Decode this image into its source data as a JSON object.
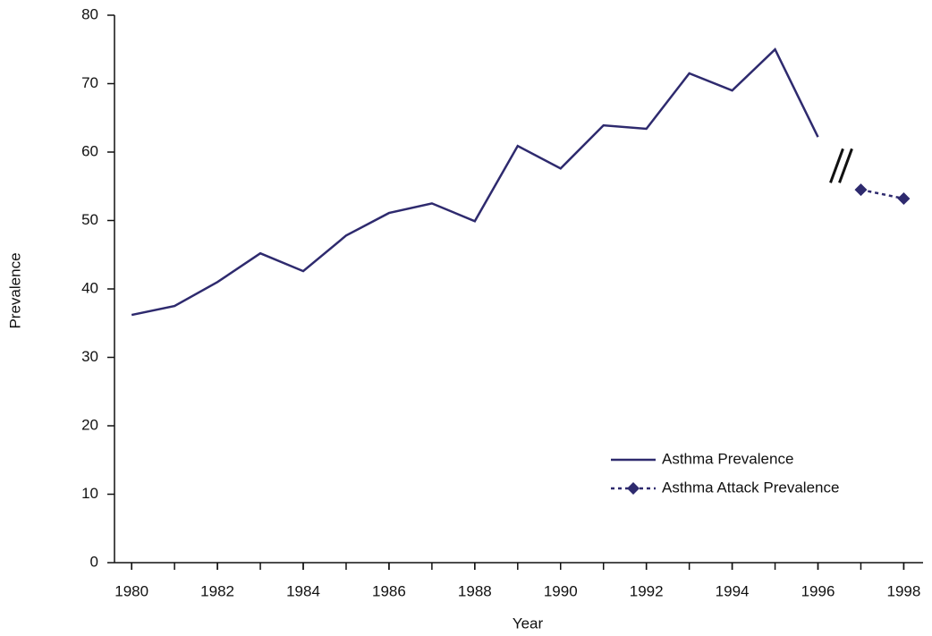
{
  "chart_data": {
    "type": "line",
    "x_label": "Year",
    "y_label": "Prevalence",
    "x": [
      1980,
      1981,
      1982,
      1983,
      1984,
      1985,
      1986,
      1987,
      1988,
      1989,
      1990,
      1991,
      1992,
      1993,
      1994,
      1995,
      1996,
      1997,
      1998
    ],
    "series": [
      {
        "name": "Asthma Prevalence",
        "color": "#2e2a6e",
        "style": "solid",
        "values": [
          36.2,
          37.5,
          41.0,
          45.2,
          42.6,
          47.8,
          51.1,
          52.5,
          49.9,
          60.9,
          57.6,
          63.9,
          63.4,
          71.5,
          69.0,
          75.0,
          62.2,
          null,
          null
        ]
      },
      {
        "name": "Asthma Attack Prevalence",
        "color": "#2e2a6e",
        "style": "dashed",
        "marker": "diamond",
        "values": [
          null,
          null,
          null,
          null,
          null,
          null,
          null,
          null,
          null,
          null,
          null,
          null,
          null,
          null,
          null,
          null,
          null,
          54.5,
          53.2
        ]
      }
    ],
    "xlim": [
      1979.6,
      1998.45
    ],
    "xticks": [
      1980,
      1982,
      1984,
      1986,
      1988,
      1990,
      1992,
      1994,
      1996,
      1998
    ],
    "ylim": [
      0,
      80
    ],
    "yticks": [
      0,
      10,
      20,
      30,
      40,
      50,
      60,
      70,
      80
    ],
    "grid": false,
    "legend": "lower right"
  }
}
